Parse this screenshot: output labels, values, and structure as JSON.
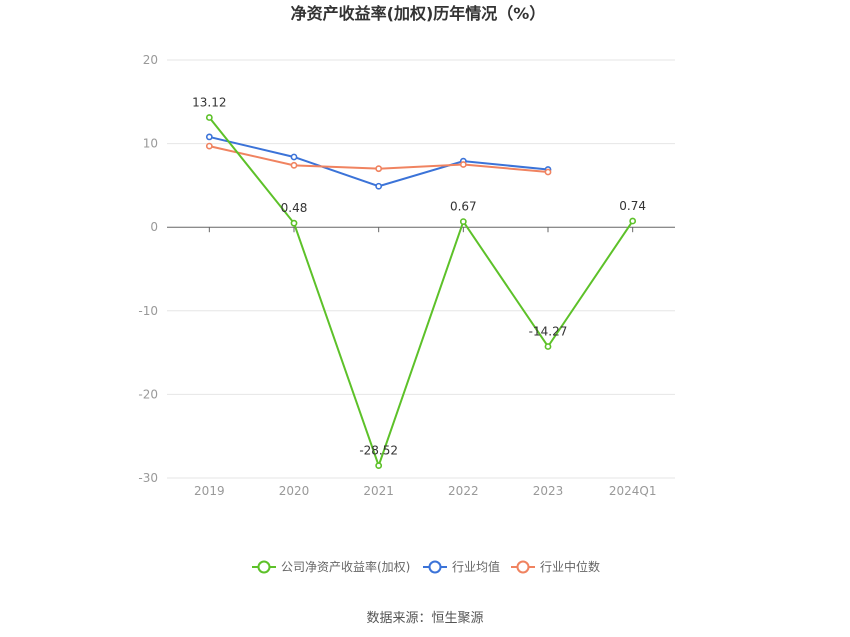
{
  "chart_data": {
    "type": "line",
    "title": "净资产收益率(加权)历年情况（%）",
    "categories": [
      "2019",
      "2020",
      "2021",
      "2022",
      "2023",
      "2024Q1"
    ],
    "ylim": [
      -30,
      20
    ],
    "yticks": [
      20,
      10,
      0,
      -10,
      -20,
      -30
    ],
    "grid": true,
    "legend_position": "bottom",
    "series": [
      {
        "name": "公司净资产收益率(加权)",
        "color": "#5DC129",
        "values": [
          13.12,
          0.48,
          -28.52,
          0.67,
          -14.27,
          0.74
        ],
        "labels": [
          "13.12",
          "0.48",
          "-28.52",
          "0.67",
          "-14.27",
          "0.74"
        ]
      },
      {
        "name": "行业均值",
        "color": "#3B73D8",
        "values": [
          10.8,
          8.4,
          4.9,
          7.9,
          6.9,
          null
        ]
      },
      {
        "name": "行业中位数",
        "color": "#F08360",
        "values": [
          9.7,
          7.4,
          7.0,
          7.5,
          6.6,
          null
        ]
      }
    ]
  },
  "source": "数据来源：恒生聚源"
}
